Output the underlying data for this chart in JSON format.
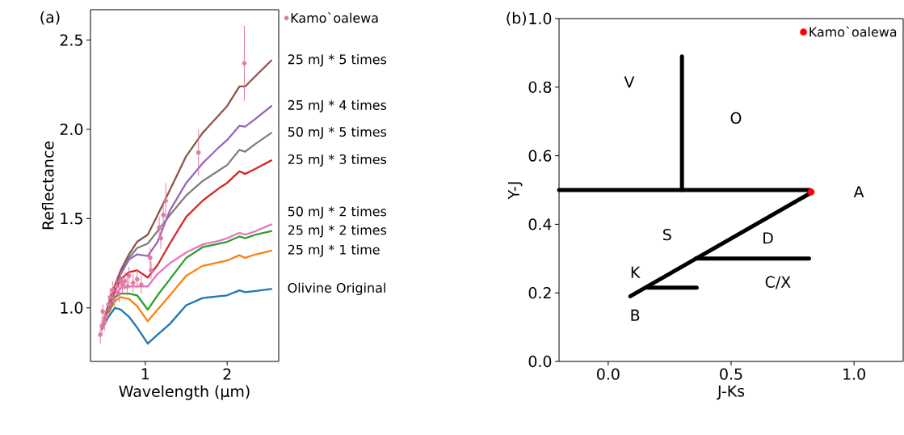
{
  "chart_data": [
    {
      "type": "line",
      "title": "(a)",
      "xlabel": "Wavelength (µm)",
      "ylabel": "Reflectance",
      "xlim": [
        0.33,
        2.63
      ],
      "ylim": [
        0.7,
        2.67
      ],
      "xticks": [
        1,
        2
      ],
      "yticks": [
        {
          "value": 1,
          "label": "1.0"
        },
        {
          "value": 1.5,
          "label": "1.5"
        },
        {
          "value": 2,
          "label": "2.0"
        },
        {
          "value": 2.5,
          "label": "2.5"
        }
      ],
      "legend": "right",
      "x": [
        0.47,
        0.55,
        0.63,
        0.7,
        0.8,
        0.9,
        1.03,
        1.15,
        1.3,
        1.5,
        1.7,
        1.9,
        2.0,
        2.15,
        2.22,
        2.35,
        2.54
      ],
      "series": [
        {
          "name": "Olivine Original",
          "color": "#1f77b4",
          "values": [
            0.88,
            0.95,
            1.0,
            0.99,
            0.95,
            0.89,
            0.8,
            0.85,
            0.91,
            1.015,
            1.055,
            1.065,
            1.07,
            1.098,
            1.088,
            1.095,
            1.106
          ]
        },
        {
          "name": "25 mJ * 1 time",
          "color": "#ff7f0e",
          "values": [
            null,
            0.97,
            1.04,
            1.06,
            1.05,
            1.01,
            0.925,
            0.99,
            1.07,
            1.18,
            1.235,
            1.255,
            1.265,
            1.295,
            1.28,
            1.3,
            1.32
          ]
        },
        {
          "name": "25 mJ * 2 times",
          "color": "#2ca02c",
          "values": [
            null,
            0.98,
            1.06,
            1.08,
            1.08,
            1.07,
            0.99,
            1.07,
            1.16,
            1.28,
            1.34,
            1.36,
            1.37,
            1.4,
            1.39,
            1.41,
            1.43
          ]
        },
        {
          "name": "50 mJ * 2 times",
          "color": "#e377c2",
          "values": [
            0.89,
            0.99,
            1.08,
            1.11,
            1.12,
            1.12,
            1.12,
            1.19,
            1.25,
            1.31,
            1.355,
            1.375,
            1.39,
            1.42,
            1.41,
            1.43,
            1.467
          ]
        },
        {
          "name": "25 mJ * 3 times",
          "color": "#d62728",
          "values": [
            0.89,
            1.0,
            1.1,
            1.16,
            1.2,
            1.21,
            1.17,
            1.24,
            1.36,
            1.51,
            1.6,
            1.67,
            1.7,
            1.765,
            1.75,
            1.78,
            1.826
          ]
        },
        {
          "name": "50 mJ * 5 times",
          "color": "#7f7f7f",
          "values": [
            0.89,
            1.01,
            1.12,
            1.19,
            1.28,
            1.335,
            1.36,
            1.43,
            1.52,
            1.63,
            1.71,
            1.77,
            1.8,
            1.885,
            1.875,
            1.92,
            1.98
          ]
        },
        {
          "name": "25 mJ * 4 times",
          "color": "#9467bd",
          "values": [
            0.89,
            1.01,
            1.12,
            1.19,
            1.27,
            1.3,
            1.29,
            1.37,
            1.545,
            1.7,
            1.81,
            1.9,
            1.94,
            2.02,
            2.015,
            2.06,
            2.13
          ]
        },
        {
          "name": "25 mJ * 5 times",
          "color": "#8c564b",
          "values": [
            0.89,
            1.02,
            1.13,
            1.21,
            1.3,
            1.37,
            1.41,
            1.52,
            1.66,
            1.85,
            1.98,
            2.08,
            2.13,
            2.24,
            2.24,
            2.3,
            2.386
          ]
        },
        {
          "name": "Kamo`oalewa",
          "type": "scatter",
          "color": "#e07ba3",
          "x": [
            0.45,
            0.47,
            0.48,
            0.5,
            0.52,
            0.55,
            0.57,
            0.6,
            0.62,
            0.65,
            0.68,
            0.7,
            0.72,
            0.75,
            0.78,
            0.8,
            0.85,
            0.9,
            0.95,
            1.06,
            1.07,
            1.17,
            1.19,
            1.22,
            1.25,
            1.65,
            2.21
          ],
          "values": [
            0.85,
            0.9,
            0.98,
            0.92,
            0.95,
            1.02,
            1.06,
            1.1,
            1.04,
            1.12,
            1.08,
            1.15,
            1.13,
            1.15,
            1.12,
            1.18,
            1.14,
            1.16,
            1.13,
            1.28,
            1.21,
            1.45,
            1.39,
            1.52,
            1.6,
            1.87,
            2.37
          ],
          "errors": [
            0.05,
            0.05,
            0.04,
            0.05,
            0.04,
            0.04,
            0.05,
            0.05,
            0.04,
            0.05,
            0.05,
            0.05,
            0.05,
            0.05,
            0.05,
            0.05,
            0.05,
            0.05,
            0.05,
            0.06,
            0.05,
            0.06,
            0.06,
            0.07,
            0.1,
            0.13,
            0.21
          ]
        }
      ]
    },
    {
      "type": "line",
      "title": "(b)",
      "xlabel": "J-Ks",
      "ylabel": "Y-J",
      "xlim": [
        -0.2,
        1.2
      ],
      "ylim": [
        0,
        1
      ],
      "xticks": [
        {
          "value": 0,
          "label": "0.0"
        },
        {
          "value": 0.5,
          "label": "0.5"
        },
        {
          "value": 1,
          "label": "1.0"
        }
      ],
      "yticks": [
        {
          "value": 0,
          "label": "0.0"
        },
        0.2,
        0.4,
        0.6,
        0.8,
        {
          "value": 1,
          "label": "1.0"
        }
      ],
      "legend": "top right",
      "annotations": [
        "V",
        "O",
        "A",
        "S",
        "D",
        "K",
        "C/X",
        "B"
      ],
      "series": [
        {
          "color": "#000000",
          "x": [
            -0.2,
            0.82
          ],
          "values": [
            0.5,
            0.5
          ]
        },
        {
          "color": "#000000",
          "x": [
            0.3,
            0.3
          ],
          "values": [
            0.5,
            0.89
          ]
        },
        {
          "color": "#000000",
          "x": [
            0.09,
            0.82
          ],
          "values": [
            0.19,
            0.49
          ]
        },
        {
          "color": "#000000",
          "x": [
            0.356,
            0.817
          ],
          "values": [
            0.3,
            0.3
          ]
        },
        {
          "color": "#000000",
          "x": [
            0.16,
            0.36
          ],
          "values": [
            0.215,
            0.215
          ]
        },
        {
          "name": "Kamo`oalewa",
          "type": "scatter",
          "color": "#ff0000",
          "x": [
            0.825
          ],
          "values": [
            0.494
          ]
        }
      ]
    }
  ]
}
